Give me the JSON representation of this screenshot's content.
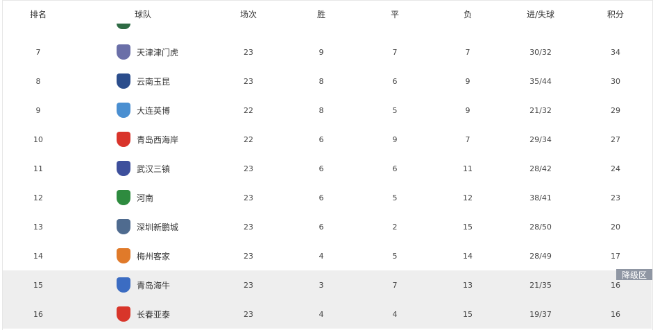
{
  "headers": {
    "rank": "排名",
    "team": "球队",
    "played": "场次",
    "won": "胜",
    "drawn": "平",
    "lost": "负",
    "goals": "进/失球",
    "points": "积分"
  },
  "relegation_label": "降级区",
  "rows": [
    {
      "rank": "7",
      "team": "天津津门虎",
      "played": "23",
      "won": "9",
      "drawn": "7",
      "lost": "7",
      "goals": "30/32",
      "points": "34",
      "logo_color": "#6a6fa8",
      "zone": ""
    },
    {
      "rank": "8",
      "team": "云南玉昆",
      "played": "23",
      "won": "8",
      "drawn": "6",
      "lost": "9",
      "goals": "35/44",
      "points": "30",
      "logo_color": "#2b4d8c",
      "zone": ""
    },
    {
      "rank": "9",
      "team": "大连英博",
      "played": "22",
      "won": "8",
      "drawn": "5",
      "lost": "9",
      "goals": "21/32",
      "points": "29",
      "logo_color": "#4a8fd1",
      "zone": ""
    },
    {
      "rank": "10",
      "team": "青岛西海岸",
      "played": "22",
      "won": "6",
      "drawn": "9",
      "lost": "7",
      "goals": "29/34",
      "points": "27",
      "logo_color": "#d9342b",
      "zone": ""
    },
    {
      "rank": "11",
      "team": "武汉三镇",
      "played": "23",
      "won": "6",
      "drawn": "6",
      "lost": "11",
      "goals": "28/42",
      "points": "24",
      "logo_color": "#3d4f9c",
      "zone": ""
    },
    {
      "rank": "12",
      "team": "河南",
      "played": "23",
      "won": "6",
      "drawn": "5",
      "lost": "12",
      "goals": "38/41",
      "points": "23",
      "logo_color": "#2e8b3f",
      "zone": ""
    },
    {
      "rank": "13",
      "team": "深圳新鹏城",
      "played": "23",
      "won": "6",
      "drawn": "2",
      "lost": "15",
      "goals": "28/50",
      "points": "20",
      "logo_color": "#4f6b8f",
      "zone": ""
    },
    {
      "rank": "14",
      "team": "梅州客家",
      "played": "23",
      "won": "4",
      "drawn": "5",
      "lost": "14",
      "goals": "28/49",
      "points": "17",
      "logo_color": "#e07a2a",
      "zone": ""
    },
    {
      "rank": "15",
      "team": "青岛海牛",
      "played": "23",
      "won": "3",
      "drawn": "7",
      "lost": "13",
      "goals": "21/35",
      "points": "16",
      "logo_color": "#3b6cc2",
      "zone": "relegation"
    },
    {
      "rank": "16",
      "team": "长春亚泰",
      "played": "23",
      "won": "4",
      "drawn": "4",
      "lost": "15",
      "goals": "19/37",
      "points": "16",
      "logo_color": "#d8352a",
      "zone": "relegation"
    }
  ]
}
